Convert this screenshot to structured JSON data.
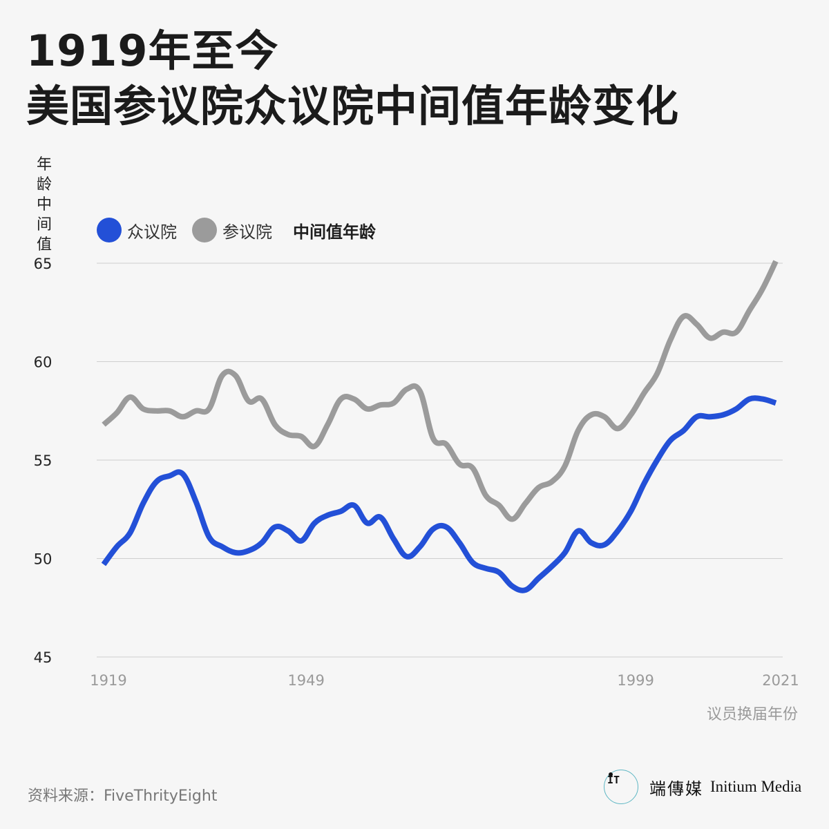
{
  "title_lines": [
    "1919年至今",
    "美国参议院众议院中间值年龄变化"
  ],
  "legend": {
    "house": "众议院",
    "senate": "参议院",
    "note": "中间值年龄"
  },
  "colors": {
    "house": "#2350d7",
    "senate": "#9b9b9b",
    "grid": "#cfcfcf"
  },
  "source": "资料来源：FiveThrityEight",
  "brand": {
    "logo_mark": "IT",
    "cn": "端傳媒",
    "en": "Initium Media"
  },
  "chart_data": {
    "type": "line",
    "ylabel": "年龄中间值",
    "xlabel": "议员换届年份",
    "ylim": [
      45,
      65
    ],
    "xlim": [
      1919,
      2021
    ],
    "yticks": [
      45,
      50,
      55,
      60,
      65
    ],
    "xticks": [
      1919,
      1949,
      1999,
      2021
    ],
    "grid": "horizontal",
    "legend_position": "top-left",
    "series": [
      {
        "name": "众议院",
        "key": "house",
        "x": [
          1919,
          1921,
          1923,
          1925,
          1927,
          1929,
          1931,
          1933,
          1935,
          1937,
          1939,
          1941,
          1943,
          1945,
          1947,
          1949,
          1951,
          1953,
          1955,
          1957,
          1959,
          1961,
          1963,
          1965,
          1967,
          1969,
          1971,
          1973,
          1975,
          1977,
          1979,
          1981,
          1983,
          1985,
          1987,
          1989,
          1991,
          1993,
          1995,
          1997,
          1999,
          2001,
          2003,
          2005,
          2007,
          2009,
          2011,
          2013,
          2015,
          2017,
          2019,
          2021
        ],
        "values": [
          49.7,
          50.6,
          51.3,
          52.8,
          53.9,
          54.2,
          54.3,
          52.9,
          51.1,
          50.6,
          50.3,
          50.4,
          50.8,
          51.6,
          51.4,
          50.9,
          51.8,
          52.2,
          52.4,
          52.7,
          51.8,
          52.1,
          51.0,
          50.1,
          50.6,
          51.5,
          51.6,
          50.8,
          49.8,
          49.5,
          49.3,
          48.6,
          48.4,
          49.0,
          49.6,
          50.3,
          51.4,
          50.8,
          50.7,
          51.4,
          52.4,
          53.8,
          55.0,
          56.0,
          56.5,
          57.2,
          57.2,
          57.3,
          57.6,
          58.1,
          58.1,
          57.9
        ]
      },
      {
        "name": "参议院",
        "key": "senate",
        "x": [
          1919,
          1921,
          1923,
          1925,
          1927,
          1929,
          1931,
          1933,
          1935,
          1937,
          1939,
          1941,
          1943,
          1945,
          1947,
          1949,
          1951,
          1953,
          1955,
          1957,
          1959,
          1961,
          1963,
          1965,
          1967,
          1969,
          1971,
          1973,
          1975,
          1977,
          1979,
          1981,
          1983,
          1985,
          1987,
          1989,
          1991,
          1993,
          1995,
          1997,
          1999,
          2001,
          2003,
          2005,
          2007,
          2009,
          2011,
          2013,
          2015,
          2017,
          2019,
          2021
        ],
        "values": [
          56.8,
          57.4,
          58.2,
          57.6,
          57.5,
          57.5,
          57.2,
          57.5,
          57.6,
          59.3,
          59.3,
          58.0,
          58.1,
          56.8,
          56.3,
          56.2,
          55.7,
          56.8,
          58.1,
          58.1,
          57.6,
          57.8,
          57.9,
          58.6,
          58.5,
          56.1,
          55.8,
          54.8,
          54.6,
          53.2,
          52.7,
          52.0,
          52.8,
          53.6,
          53.9,
          54.7,
          56.5,
          57.3,
          57.2,
          56.6,
          57.3,
          58.4,
          59.4,
          61.1,
          62.3,
          61.9,
          61.2,
          61.5,
          61.5,
          62.6,
          63.7,
          65.1
        ]
      }
    ]
  }
}
